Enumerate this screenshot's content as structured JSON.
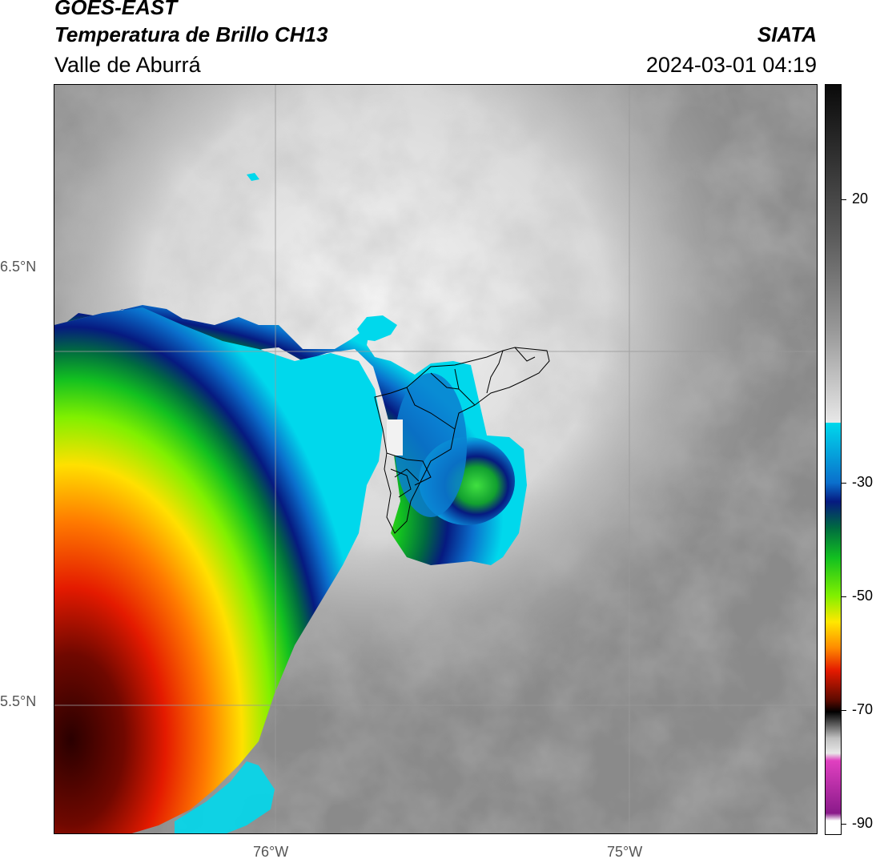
{
  "header": {
    "satellite": "GOES-EAST",
    "product": "Temperatura de Brillo CH13",
    "region": "Valle de Aburrá",
    "agency": "SIATA",
    "datetime": "2024-03-01 04:19"
  },
  "map": {
    "lat_labels": [
      "6.5°N",
      "5.5°N"
    ],
    "lon_labels": [
      "76°W",
      "75°W"
    ]
  },
  "colorbar": {
    "ticks": [
      "20",
      "-30",
      "-50",
      "-70",
      "-90"
    ],
    "colors": {
      "cyan": "#00d8ec",
      "blue": "#0a4fa8",
      "navy": "#061a80",
      "green": "#12c020",
      "lime": "#80f000",
      "yellow": "#ffe800",
      "orange": "#ff8a00",
      "red": "#e41a00",
      "darkred": "#5a0a00",
      "magenta": "#e040c0",
      "purple": "#8a1a8a"
    }
  }
}
